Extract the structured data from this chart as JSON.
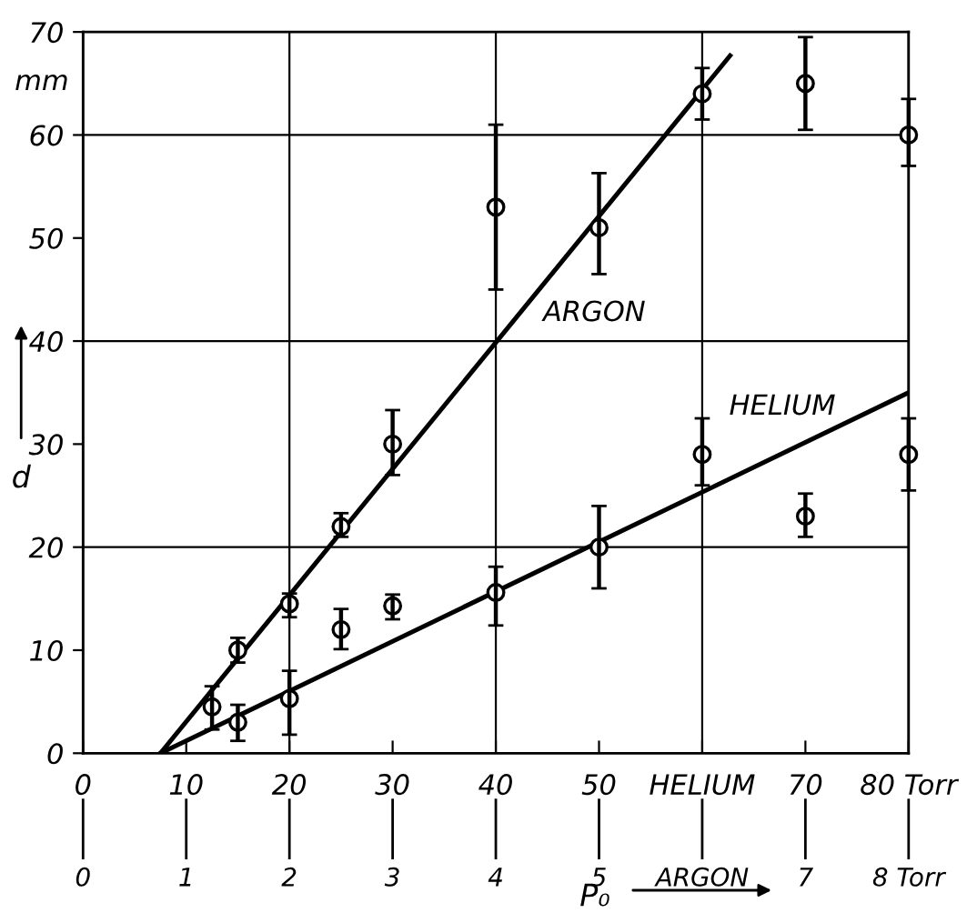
{
  "chart_data": {
    "type": "scatter",
    "xlabel": "P₀",
    "ylabel": "d",
    "annotations": [
      "mm"
    ],
    "xlim": [
      0,
      80
    ],
    "xticks": [
      0,
      10,
      20,
      30,
      40,
      50,
      {
        "value": 60,
        "label": "HELIUM"
      },
      70,
      {
        "value": 80,
        "label": "80 Torr"
      }
    ],
    "x2lim": [
      0,
      8
    ],
    "x2ticks": [
      0,
      1,
      2,
      3,
      4,
      5,
      {
        "value": 6,
        "label": "ARGON"
      },
      7,
      {
        "value": 8,
        "label": "8 Torr"
      }
    ],
    "ylim": [
      0,
      70
    ],
    "yticks": [
      0,
      10,
      20,
      30,
      40,
      50,
      60,
      70
    ],
    "grid": true,
    "legend": false,
    "marker": "circle",
    "series": [
      {
        "axis": "x2",
        "color": "#000000",
        "x": [
          1.25,
          1.5,
          2,
          2.5,
          3,
          4,
          5,
          6,
          7,
          8
        ],
        "values": [
          4.5,
          10,
          14.5,
          22,
          30,
          53,
          51,
          64,
          65,
          60
        ],
        "errors": [
          [
            2.3,
            6.5
          ],
          [
            8.8,
            11.2
          ],
          [
            13.2,
            15.5
          ],
          [
            21,
            23.3
          ],
          [
            27,
            33.3
          ],
          [
            45,
            61
          ],
          [
            46.5,
            56.3
          ],
          [
            61.5,
            66.5
          ],
          [
            60.5,
            69.5
          ],
          [
            57,
            63.5
          ]
        ]
      },
      {
        "type": "line",
        "axis": "x2",
        "name": "ARGON",
        "color": "#000000",
        "marker": "none",
        "x": [
          0.75,
          6.27
        ],
        "values": [
          0,
          67.7
        ]
      },
      {
        "color": "#000000",
        "x": [
          15,
          20,
          25,
          30,
          40,
          50,
          60,
          70,
          80
        ],
        "values": [
          3,
          5.3,
          12,
          14.3,
          15.6,
          20,
          29,
          23,
          29
        ],
        "errors": [
          [
            1.2,
            4.7
          ],
          [
            1.8,
            8
          ],
          [
            10.1,
            14
          ],
          [
            13,
            15.4
          ],
          [
            12.4,
            18.1
          ],
          [
            16,
            24
          ],
          [
            26,
            32.5
          ],
          [
            21,
            25.2
          ],
          [
            25.5,
            32.5
          ]
        ]
      },
      {
        "type": "line",
        "name": "HELIUM",
        "color": "#000000",
        "marker": "none",
        "x": [
          7.5,
          80
        ],
        "values": [
          0,
          35
        ]
      }
    ]
  }
}
